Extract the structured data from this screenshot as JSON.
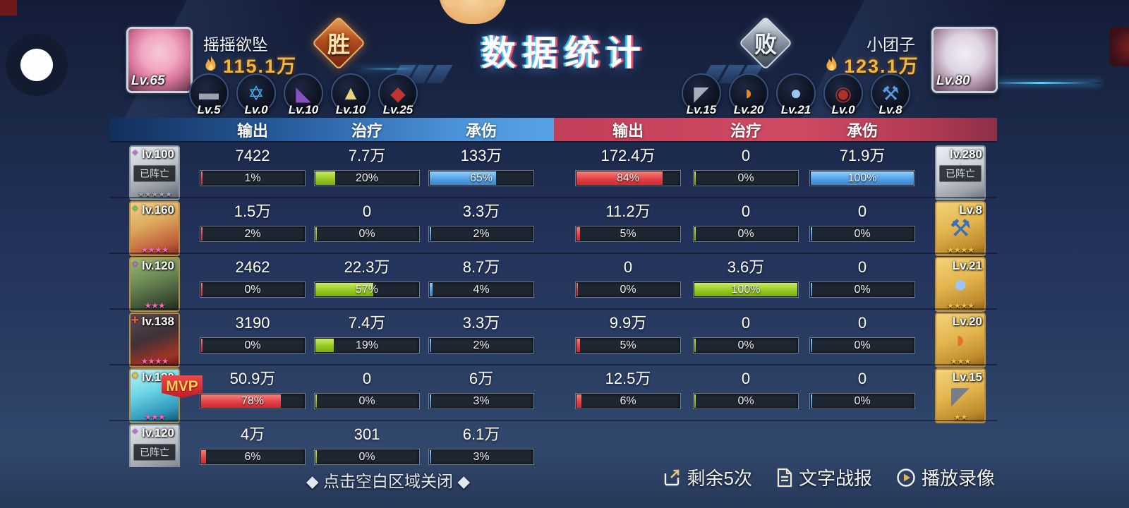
{
  "title": "数据统计",
  "left_player": {
    "name": "摇摇欲坠",
    "level": "Lv.65",
    "power": "115.1万",
    "result": "胜"
  },
  "right_player": {
    "name": "小团子",
    "level": "Lv.80",
    "power": "123.1万",
    "result": "败"
  },
  "left_weapons": [
    {
      "level": "Lv.5",
      "icon": "rifle-icon",
      "glyph": "▬",
      "color": "#9aa2ad"
    },
    {
      "level": "Lv.0",
      "icon": "hexagram-icon",
      "glyph": "✡",
      "color": "#4db4f0"
    },
    {
      "level": "Lv.10",
      "icon": "mech-icon",
      "glyph": "◣",
      "color": "#8a4fc0"
    },
    {
      "level": "Lv.10",
      "icon": "armor-icon",
      "glyph": "▲",
      "color": "#e8d37a"
    },
    {
      "level": "Lv.25",
      "icon": "blade-icon",
      "glyph": "◆",
      "color": "#c03530"
    }
  ],
  "right_weapons": [
    {
      "level": "Lv.15",
      "icon": "wedge-icon",
      "glyph": "◤",
      "color": "#a8aeb6"
    },
    {
      "level": "Lv.20",
      "icon": "fox-icon",
      "glyph": "◗",
      "color": "#e88a2c"
    },
    {
      "level": "Lv.21",
      "icon": "slime-icon",
      "glyph": "●",
      "color": "#9ec4f2"
    },
    {
      "level": "Lv.0",
      "icon": "vortex-icon",
      "glyph": "◉",
      "color": "#b03028"
    },
    {
      "level": "Lv.8",
      "icon": "hammer-icon",
      "glyph": "⚒",
      "color": "#5a9ae0"
    }
  ],
  "columns": [
    "输出",
    "治疗",
    "承伤"
  ],
  "rows": [
    {
      "unit": {
        "level": "lv.100",
        "art": "gray1",
        "dead": true,
        "dead_label": "已阵亡",
        "stars": 5,
        "star_color": "#9aa4ae",
        "element": "✦",
        "element_color": "#c86ae0"
      },
      "left": [
        {
          "value": "7422",
          "pct": 1
        },
        {
          "value": "7.7万",
          "pct": 20
        },
        {
          "value": "133万",
          "pct": 65
        }
      ],
      "right": [
        {
          "value": "172.4万",
          "pct": 84
        },
        {
          "value": "0",
          "pct": 0
        },
        {
          "value": "71.9万",
          "pct": 100
        }
      ],
      "item": {
        "level": "lv.280",
        "art": "grayitem",
        "dead": true,
        "dead_label": "已阵亡",
        "stars": 0,
        "glyph": "❄",
        "glyph_color": "#8fd2e8"
      }
    },
    {
      "unit": {
        "level": "lv.160",
        "art": "blonde",
        "dead": false,
        "stars": 4,
        "star_color": "#f468b8",
        "element": "✦",
        "element_color": "#58d85a"
      },
      "left": [
        {
          "value": "1.5万",
          "pct": 2
        },
        {
          "value": "0",
          "pct": 0
        },
        {
          "value": "3.3万",
          "pct": 2
        }
      ],
      "right": [
        {
          "value": "11.2万",
          "pct": 5
        },
        {
          "value": "0",
          "pct": 0
        },
        {
          "value": "0",
          "pct": 0
        }
      ],
      "item": {
        "level": "Lv.8",
        "art": "gold",
        "dead": false,
        "stars": 4,
        "glyph": "⚒",
        "glyph_color": "#3a70b8"
      }
    },
    {
      "unit": {
        "level": "lv.120",
        "art": "green",
        "dead": false,
        "stars": 3,
        "star_color": "#f468b8",
        "element": "✦",
        "element_color": "#c86ae0"
      },
      "left": [
        {
          "value": "2462",
          "pct": 0
        },
        {
          "value": "22.3万",
          "pct": 57
        },
        {
          "value": "8.7万",
          "pct": 4
        }
      ],
      "right": [
        {
          "value": "0",
          "pct": 0
        },
        {
          "value": "3.6万",
          "pct": 100
        },
        {
          "value": "0",
          "pct": 0
        }
      ],
      "item": {
        "level": "Lv.21",
        "art": "gold",
        "dead": false,
        "stars": 4,
        "glyph": "●",
        "glyph_color": "#9ec4f2"
      }
    },
    {
      "unit": {
        "level": "lv.138",
        "art": "darkred",
        "dead": false,
        "stars": 4,
        "star_color": "#f468b8",
        "element": "✚",
        "element_color": "#e85a4a"
      },
      "left": [
        {
          "value": "3190",
          "pct": 0
        },
        {
          "value": "7.4万",
          "pct": 19
        },
        {
          "value": "3.3万",
          "pct": 2
        }
      ],
      "right": [
        {
          "value": "9.9万",
          "pct": 5
        },
        {
          "value": "0",
          "pct": 0
        },
        {
          "value": "0",
          "pct": 0
        }
      ],
      "item": {
        "level": "Lv.20",
        "art": "gold",
        "dead": false,
        "stars": 3,
        "glyph": "◗",
        "glyph_color": "#e8702c"
      }
    },
    {
      "unit": {
        "level": "lv.120",
        "art": "cyan",
        "dead": false,
        "stars": 3,
        "star_color": "#f468b8",
        "element": "✹",
        "element_color": "#e8c04a",
        "mvp": true,
        "mvp_label": "MVP"
      },
      "left": [
        {
          "value": "50.9万",
          "pct": 78
        },
        {
          "value": "0",
          "pct": 0
        },
        {
          "value": "6万",
          "pct": 3
        }
      ],
      "right": [
        {
          "value": "12.5万",
          "pct": 6
        },
        {
          "value": "0",
          "pct": 0
        },
        {
          "value": "0",
          "pct": 0
        }
      ],
      "item": {
        "level": "Lv.15",
        "art": "gold",
        "dead": false,
        "stars": 2,
        "glyph": "◤",
        "glyph_color": "#787e88"
      }
    },
    {
      "unit": {
        "level": "lv.120",
        "art": "gray2",
        "dead": true,
        "dead_label": "已阵亡",
        "stars": 0,
        "element": "✦",
        "element_color": "#c86ae0"
      },
      "left": [
        {
          "value": "4万",
          "pct": 6
        },
        {
          "value": "301",
          "pct": 0
        },
        {
          "value": "6.1万",
          "pct": 3
        }
      ],
      "right": null,
      "item": null
    }
  ],
  "footer": {
    "hint": "◆ 点击空白区域关闭 ◆",
    "buttons": [
      {
        "label": "剩余5次",
        "icon": "share-icon"
      },
      {
        "label": "文字战报",
        "icon": "doc-icon"
      },
      {
        "label": "播放录像",
        "icon": "play-icon"
      }
    ]
  },
  "colors": {
    "damage": "#e23c44",
    "heal": "#93c620",
    "taken": "#4f9ce6",
    "gold": "#f2b73c",
    "win": "#b34e1e",
    "lose": "#8a97a5"
  }
}
